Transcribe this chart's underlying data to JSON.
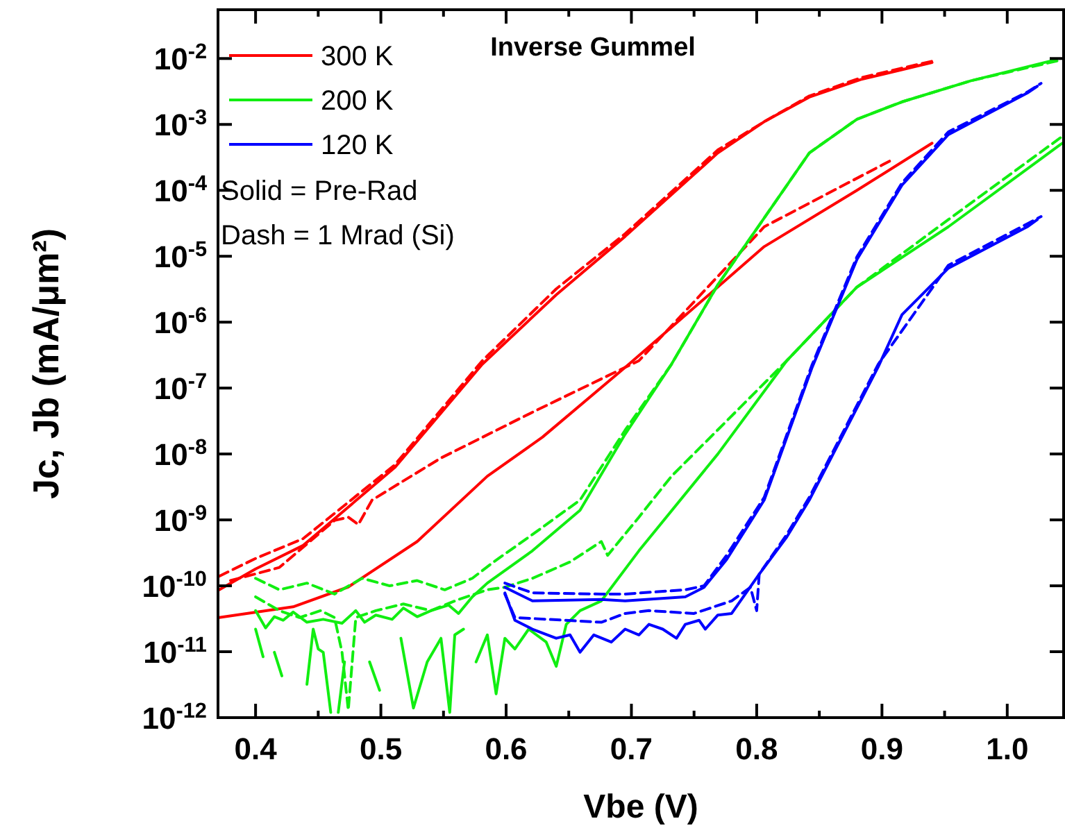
{
  "chart_data": {
    "type": "line",
    "title": "Inverse Gummel",
    "xlabel": "Vbe (V)",
    "ylabel": "Jc, Jb (mA/μm²)",
    "log": "y",
    "xlim": [
      0.37,
      1.045
    ],
    "ylim": [
      1e-12,
      0.055
    ],
    "xticks": [
      0.4,
      {
        "value": 0.45,
        "label": null
      },
      0.5,
      {
        "value": 0.55,
        "label": null
      },
      0.6,
      {
        "value": 0.65,
        "label": null
      },
      0.7,
      {
        "value": 0.75,
        "label": null
      },
      0.8,
      {
        "value": 0.85,
        "label": null
      },
      0.9,
      {
        "value": 0.95,
        "label": null
      },
      {
        "value": 1,
        "label": "1.0"
      }
    ],
    "yticks": [
      {
        "value": 1e-12,
        "label": "10$^{-12}$"
      },
      {
        "value": 1e-11,
        "label": "10$^{-11}$"
      },
      {
        "value": 1e-10,
        "label": "10$^{-10}$"
      },
      {
        "value": 1e-09,
        "label": "10$^{-9}$"
      },
      {
        "value": 1e-08,
        "label": "10$^{-8}$"
      },
      {
        "value": 1e-07,
        "label": "10$^{-7}$"
      },
      {
        "value": 1e-06,
        "label": "10$^{-6}$"
      },
      {
        "value": 1e-05,
        "label": "10$^{-5}$"
      },
      {
        "value": 0.0001,
        "label": "10$^{-4}$"
      },
      {
        "value": 0.001,
        "label": "10$^{-3}$"
      },
      {
        "value": 0.01,
        "label": "10$^{-2}$"
      }
    ],
    "legend": "top left",
    "annotations": [
      "Solid = Pre-Rad",
      "Dash = 1 Mrad (Si)"
    ],
    "series": [
      {
        "name": "300 K",
        "color": "#ff0000",
        "line_style": "solid",
        "x": [
          0.371,
          0.4,
          0.438,
          0.511,
          0.581,
          0.64,
          0.695,
          0.769,
          0.806,
          0.842,
          0.883,
          0.94
        ],
        "values": [
          8.7e-11,
          1.8e-10,
          4.1e-10,
          6.2e-09,
          2.3e-07,
          2.6e-06,
          2e-05,
          0.00037,
          0.0011,
          0.0026,
          0.0048,
          0.0087
        ]
      },
      {
        "color": "#ff0000",
        "line_style": "dashed",
        "x": [
          0.371,
          0.4,
          0.438,
          0.511,
          0.581,
          0.64,
          0.695,
          0.769,
          0.806,
          0.842,
          0.883,
          0.94
        ],
        "values": [
          1.4e-10,
          2.6e-10,
          5.2e-10,
          6.8e-09,
          2.6e-07,
          3.2e-06,
          2.2e-05,
          0.00041,
          0.0011,
          0.0027,
          0.0051,
          0.0091
        ]
      },
      {
        "color": "#ff0000",
        "line_style": "solid",
        "x": [
          0.371,
          0.43,
          0.474,
          0.529,
          0.585,
          0.629,
          0.698,
          0.806,
          0.88,
          0.94
        ],
        "values": [
          3.3e-11,
          4.8e-11,
          9.6e-11,
          4.7e-10,
          4.6e-09,
          1.8e-08,
          2.3e-07,
          1.4e-05,
          0.0001,
          0.00052
        ]
      },
      {
        "color": "#ff0000",
        "line_style": "dashed",
        "x": [
          0.38,
          0.419,
          0.463,
          0.474,
          0.482,
          0.493,
          0.548,
          0.621,
          0.706,
          0.806,
          0.908
        ],
        "values": [
          1.2e-10,
          1.9e-10,
          9.8e-10,
          1.1e-09,
          8.5e-10,
          2e-09,
          8.7e-09,
          4.3e-08,
          2.6e-07,
          2.8e-05,
          0.00029
        ]
      },
      {
        "name": "200 K",
        "color": "#11ee11",
        "line_style": "solid",
        "x": [
          0.4,
          0.408,
          0.415,
          0.422,
          0.43,
          0.441,
          0.454,
          0.469,
          0.48,
          0.487,
          0.496,
          0.509,
          0.518,
          0.529,
          0.54,
          0.554,
          0.562,
          0.573,
          0.585,
          0.621,
          0.659,
          0.695,
          0.732,
          0.769,
          0.806,
          0.842,
          0.88,
          0.916,
          0.971,
          1.038
        ],
        "values": [
          4.2e-11,
          2.3e-11,
          3.4e-11,
          3e-11,
          4e-11,
          2.8e-11,
          3.1e-11,
          2.7e-11,
          4.2e-11,
          2.8e-11,
          3.6e-11,
          3.1e-11,
          4.6e-11,
          3.4e-11,
          4.2e-11,
          5.1e-11,
          3.8e-11,
          6.8e-11,
          1.1e-10,
          3.4e-10,
          1.4e-09,
          2e-08,
          2.3e-07,
          3.7e-06,
          3.8e-05,
          0.00037,
          0.0012,
          0.0022,
          0.0046,
          0.0095
        ]
      },
      {
        "color": "#11ee11",
        "line_style": "dashed",
        "x": [
          0.4,
          0.419,
          0.441,
          0.463,
          0.485,
          0.507,
          0.529,
          0.551,
          0.573,
          0.59,
          0.621,
          0.659,
          0.695,
          0.732,
          0.769,
          0.806,
          0.842,
          0.88,
          0.916,
          0.971,
          1.044
        ],
        "values": [
          1.3e-10,
          8.7e-11,
          1.1e-10,
          7.5e-11,
          1.3e-10,
          1e-10,
          1.2e-10,
          8.7e-11,
          1.3e-10,
          2.3e-10,
          6e-10,
          2e-09,
          2.3e-08,
          2.3e-07,
          3.7e-06,
          3.8e-05,
          0.00037,
          0.0012,
          0.0022,
          0.0046,
          0.0096
        ]
      },
      {
        "color": "#11ee11",
        "line_style": "solid",
        "x": [
          0.4,
          0.406,
          0.41,
          0.415,
          0.421,
          0.43,
          0.441,
          0.446,
          0.45,
          0.454,
          0.46,
          0.463,
          0.466,
          0.471,
          0.48,
          0.491,
          0.499,
          0.507,
          0.516,
          0.526,
          0.537,
          0.548,
          0.555,
          0.559,
          0.566,
          0.571,
          0.576,
          0.585,
          0.592,
          0.599,
          0.607,
          0.618,
          0.632,
          0.64,
          0.648,
          0.659,
          0.676,
          0.706,
          0.769,
          0.824,
          0.88,
          0.953,
          1.044
        ],
        "values": [
          2.2e-11,
          8.4e-12,
          null,
          9.8e-12,
          4.3e-12,
          null,
          3.2e-12,
          2.2e-11,
          1.1e-11,
          9.8e-12,
          1.2e-12,
          null,
          1.2e-12,
          7e-12,
          null,
          7e-12,
          2.6e-12,
          null,
          1.6e-11,
          1.4e-12,
          7e-12,
          1.6e-11,
          1.2e-12,
          1.8e-11,
          2.2e-11,
          null,
          7e-12,
          1.8e-11,
          2.3e-12,
          1.6e-11,
          1.1e-11,
          2.2e-11,
          1.4e-11,
          6e-12,
          2.6e-11,
          4.2e-11,
          5.9e-11,
          3.4e-10,
          1e-08,
          2.6e-07,
          3.4e-06,
          2.8e-05,
          0.00052
        ]
      },
      {
        "color": "#11ee11",
        "line_style": "dashed",
        "x": [
          0.4,
          0.419,
          0.435,
          0.452,
          0.463,
          0.469,
          0.474,
          0.48,
          0.496,
          0.518,
          0.54,
          0.562,
          0.585,
          0.599,
          0.621,
          0.651,
          0.676,
          0.681,
          0.706,
          0.732,
          0.824,
          0.88,
          0.953,
          1.044
        ],
        "values": [
          6.8e-11,
          4.2e-11,
          3.3e-11,
          4.2e-11,
          3.3e-11,
          9.8e-12,
          1.3e-12,
          3.3e-11,
          4.2e-11,
          5.3e-11,
          4.2e-11,
          6.2e-11,
          8.7e-11,
          9.5e-11,
          1.3e-10,
          2.3e-10,
          4.7e-10,
          2.9e-10,
          1.1e-09,
          4.6e-09,
          2.6e-07,
          3.4e-06,
          3.6e-05,
          0.00066
        ]
      },
      {
        "name": "120 K",
        "color": "#0000ff",
        "line_style": "solid",
        "x": [
          0.599,
          0.621,
          0.676,
          0.695,
          0.743,
          0.758,
          0.776,
          0.806,
          0.844,
          0.88,
          0.916,
          0.953,
          1.016,
          1.024
        ],
        "values": [
          9.5e-11,
          5.9e-11,
          6.2e-11,
          5.9e-11,
          6.8e-11,
          9.5e-11,
          2.5e-10,
          2e-09,
          2e-07,
          8.9e-06,
          0.00012,
          0.0007,
          0.003,
          0.0038
        ]
      },
      {
        "color": "#0000ff",
        "line_style": "dashed",
        "x": [
          0.599,
          0.621,
          0.676,
          0.695,
          0.743,
          0.758,
          0.776,
          0.806,
          0.844,
          0.88,
          0.916,
          0.953,
          1.016,
          1.027
        ],
        "values": [
          1.1e-10,
          7.8e-11,
          7.5e-11,
          7.5e-11,
          8.7e-11,
          1e-10,
          2.9e-10,
          2.2e-09,
          2.2e-07,
          9.8e-06,
          0.00013,
          0.00077,
          0.0031,
          0.0042
        ]
      },
      {
        "color": "#0000ff",
        "line_style": "solid",
        "x": [
          0.599,
          0.607,
          0.621,
          0.64,
          0.651,
          0.659,
          0.67,
          0.684,
          0.695,
          0.706,
          0.714,
          0.725,
          0.736,
          0.743,
          0.754,
          0.759,
          0.769,
          0.78,
          0.802,
          0.824,
          0.842,
          0.897,
          0.916,
          0.953,
          1.016,
          1.024
        ],
        "values": [
          7.8e-11,
          3e-11,
          2.2e-11,
          1.6e-11,
          1.8e-11,
          9.8e-12,
          1.8e-11,
          1.4e-11,
          2.2e-11,
          1.8e-11,
          2.6e-11,
          2.2e-11,
          1.6e-11,
          2.6e-11,
          3e-11,
          2.2e-11,
          3.6e-11,
          3.8e-11,
          1.5e-10,
          5.5e-10,
          2e-09,
          2.1e-07,
          1.3e-06,
          6.6e-06,
          2.8e-05,
          3.6e-05
        ]
      },
      {
        "color": "#0000ff",
        "line_style": "dashed",
        "x": [
          0.599,
          0.607,
          0.676,
          0.695,
          0.714,
          0.75,
          0.78,
          0.795,
          0.8,
          0.802,
          0.824,
          0.842,
          0.897,
          0.953,
          1.016,
          1.027
        ],
        "values": [
          7.5e-11,
          3.3e-11,
          2.8e-11,
          3.8e-11,
          4.2e-11,
          3.8e-11,
          5.9e-11,
          9.5e-11,
          4.2e-11,
          1.5e-10,
          6e-10,
          2.2e-09,
          2.3e-07,
          7.3e-06,
          3.1e-05,
          4e-05
        ]
      }
    ]
  }
}
